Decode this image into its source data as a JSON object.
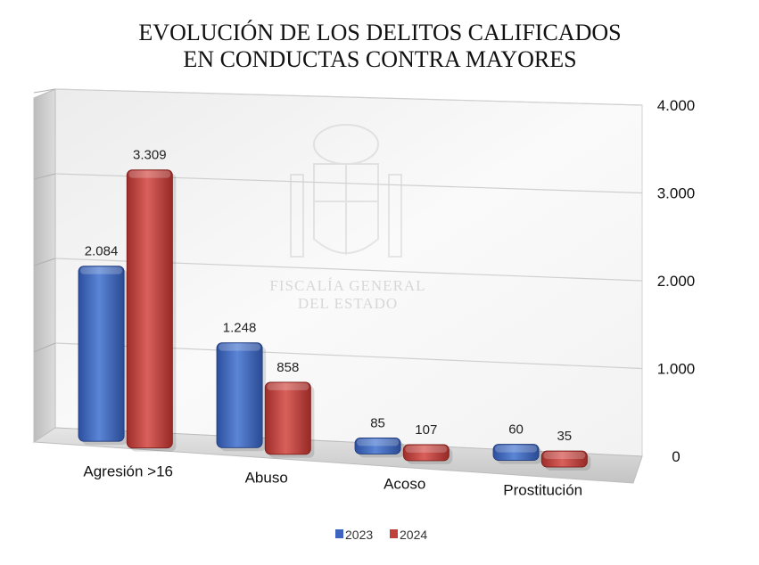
{
  "chart_data": {
    "type": "bar",
    "title": [
      "EVOLUCIÓN DE LOS DELITOS CALIFICADOS",
      "EN CONDUCTAS CONTRA MAYORES"
    ],
    "categories": [
      "Agresión >16",
      "Abuso",
      "Acoso",
      "Prostitución"
    ],
    "series": [
      {
        "name": "2023",
        "color": "#3d64bf",
        "values": [
          2084,
          1248,
          85,
          60
        ],
        "labels": [
          "2.084",
          "1.248",
          "85",
          "60"
        ]
      },
      {
        "name": "2024",
        "color": "#c0403c",
        "values": [
          3309,
          858,
          107,
          35
        ],
        "labels": [
          "3.309",
          "858",
          "107",
          "35"
        ]
      }
    ],
    "yticks": [
      "0",
      "1.000",
      "2.000",
      "3.000",
      "4.000"
    ],
    "ylim": [
      0,
      4000
    ],
    "grid": true,
    "legend_position": "bottom",
    "watermark": [
      "FISCALÍA GENERAL",
      "DEL ESTADO"
    ]
  }
}
